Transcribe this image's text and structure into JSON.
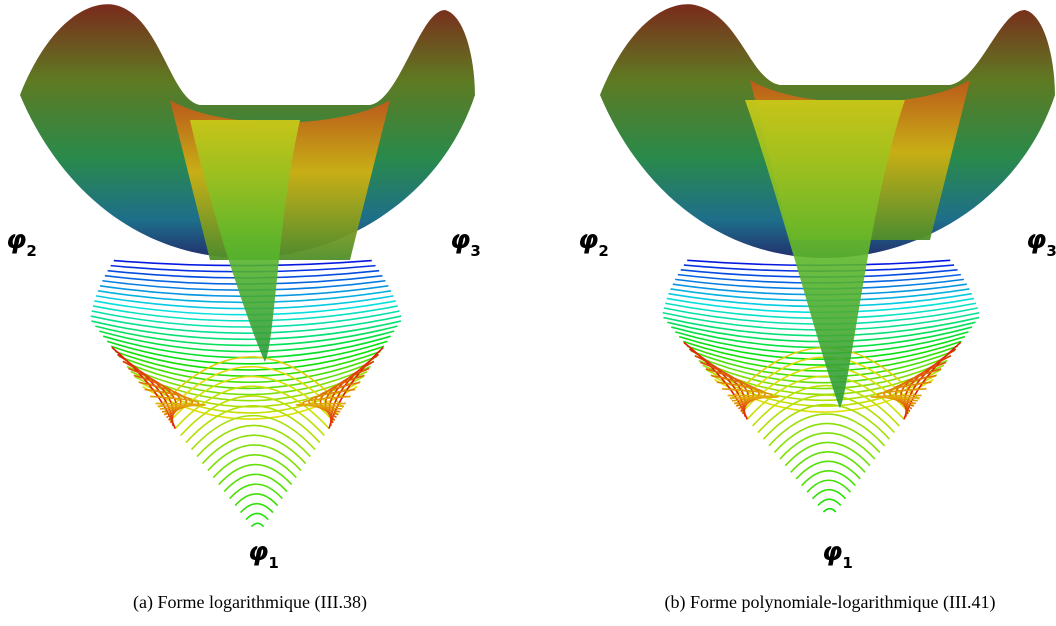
{
  "panels": [
    {
      "caption": "(a) Forme logarithmique (III.38)",
      "vertices": [
        {
          "symbol": "φ",
          "index": "1"
        },
        {
          "symbol": "φ",
          "index": "2"
        },
        {
          "symbol": "φ",
          "index": "3"
        }
      ]
    },
    {
      "caption": "(b) Forme polynomiale-logarithmique (III.41)",
      "vertices": [
        {
          "symbol": "φ",
          "index": "1"
        },
        {
          "symbol": "φ",
          "index": "2"
        },
        {
          "symbol": "φ",
          "index": "3"
        }
      ]
    }
  ]
}
